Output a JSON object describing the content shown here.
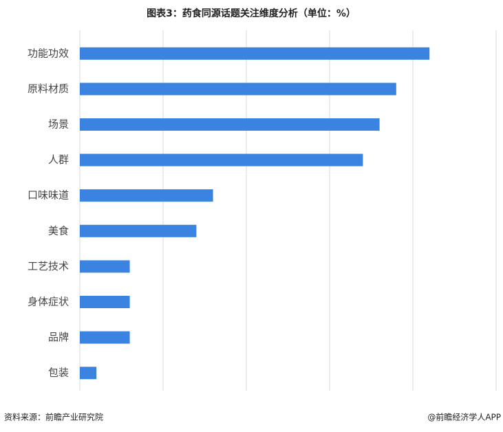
{
  "chart_data": {
    "type": "bar",
    "orientation": "horizontal",
    "title": "图表3：药食同源话题关注维度分析（单位：%）",
    "categories": [
      "功能功效",
      "原料材质",
      "场景",
      "人群",
      "口味味道",
      "美食",
      "工艺技术",
      "身体症状",
      "品牌",
      "包装"
    ],
    "values": [
      21,
      19,
      18,
      17,
      8,
      7,
      3,
      3,
      3,
      1
    ],
    "color": "#3b83e0",
    "xlim": [
      0,
      25
    ],
    "xticks": [
      0,
      5,
      10,
      15,
      20,
      25
    ],
    "grid": true,
    "source": "资料来源：前瞻产业研究院",
    "credit": "@前瞻经济学人APP"
  }
}
